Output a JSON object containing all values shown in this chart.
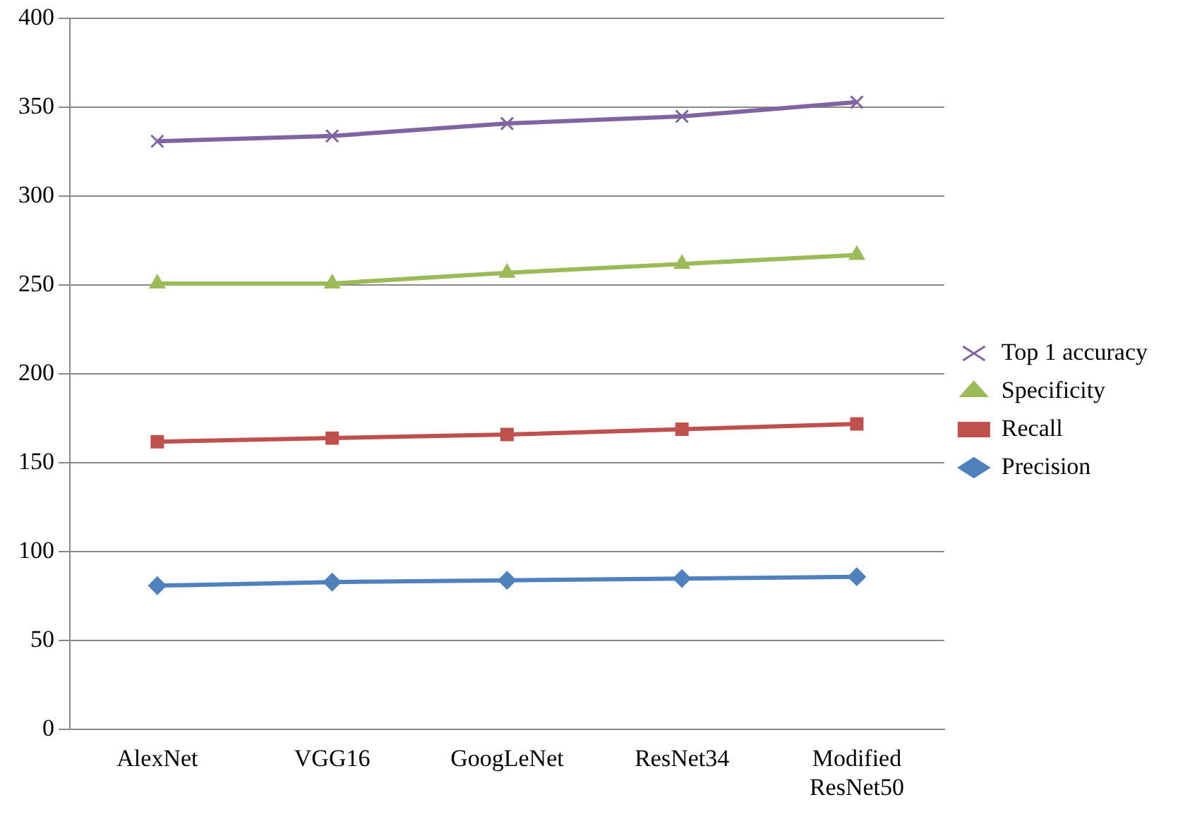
{
  "chart_data": {
    "type": "line",
    "categories": [
      "AlexNet",
      "VGG16",
      "GoogLeNet",
      "ResNet34",
      "Modified ResNet50"
    ],
    "series": [
      {
        "name": "Precision",
        "color": "#4f81bd",
        "marker": "diamond",
        "values": [
          81,
          83,
          84,
          85,
          86
        ]
      },
      {
        "name": "Recall",
        "color": "#c0504d",
        "marker": "square",
        "values": [
          162,
          164,
          166,
          169,
          172
        ]
      },
      {
        "name": "Specificity",
        "color": "#9bbb59",
        "marker": "triangle",
        "values": [
          251,
          251,
          257,
          262,
          267
        ]
      },
      {
        "name": "Top 1 accuracy",
        "color": "#8064a2",
        "marker": "cross",
        "values": [
          331,
          334,
          341,
          345,
          353
        ]
      }
    ],
    "ylim": [
      0,
      400
    ],
    "yticks": [
      0,
      50,
      100,
      150,
      200,
      250,
      300,
      350,
      400
    ],
    "grid": "y",
    "legend": "right"
  }
}
